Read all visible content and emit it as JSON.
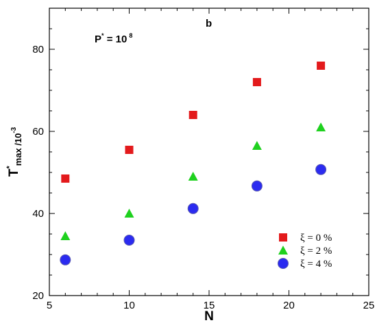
{
  "chart_data": {
    "type": "scatter",
    "xlabel": "N",
    "ylabel": {
      "base": "T",
      "sup": "*",
      "sub": "max /10",
      "sub_sup": "-3"
    },
    "xlim": [
      5,
      25
    ],
    "ylim": [
      20,
      90
    ],
    "xticks": [
      5,
      10,
      15,
      20,
      25
    ],
    "yticks": [
      20,
      40,
      60,
      80
    ],
    "grid": false,
    "legend_position": "bottom-right",
    "annotations": {
      "panel": "b",
      "p_label": {
        "base": "P",
        "sup1": "*",
        "mid": " = 10",
        "sup2": "8"
      }
    },
    "series": [
      {
        "name": "ξ = 0 %",
        "marker": "square",
        "color": "#e31a1c",
        "x": [
          6,
          10,
          14,
          18,
          22
        ],
        "y": [
          48.5,
          55.5,
          64,
          72,
          76
        ]
      },
      {
        "name": "ξ = 2 %",
        "marker": "triangle",
        "color": "#1fd11f",
        "x": [
          6,
          10,
          14,
          18,
          22
        ],
        "y": [
          34.5,
          40,
          49,
          56.5,
          61
        ]
      },
      {
        "name": "ξ = 4 %",
        "marker": "circle",
        "color": "#2b2bf0",
        "x": [
          6,
          10,
          14,
          18,
          22
        ],
        "y": [
          28.7,
          33.5,
          41.2,
          46.7,
          50.7
        ]
      }
    ]
  }
}
